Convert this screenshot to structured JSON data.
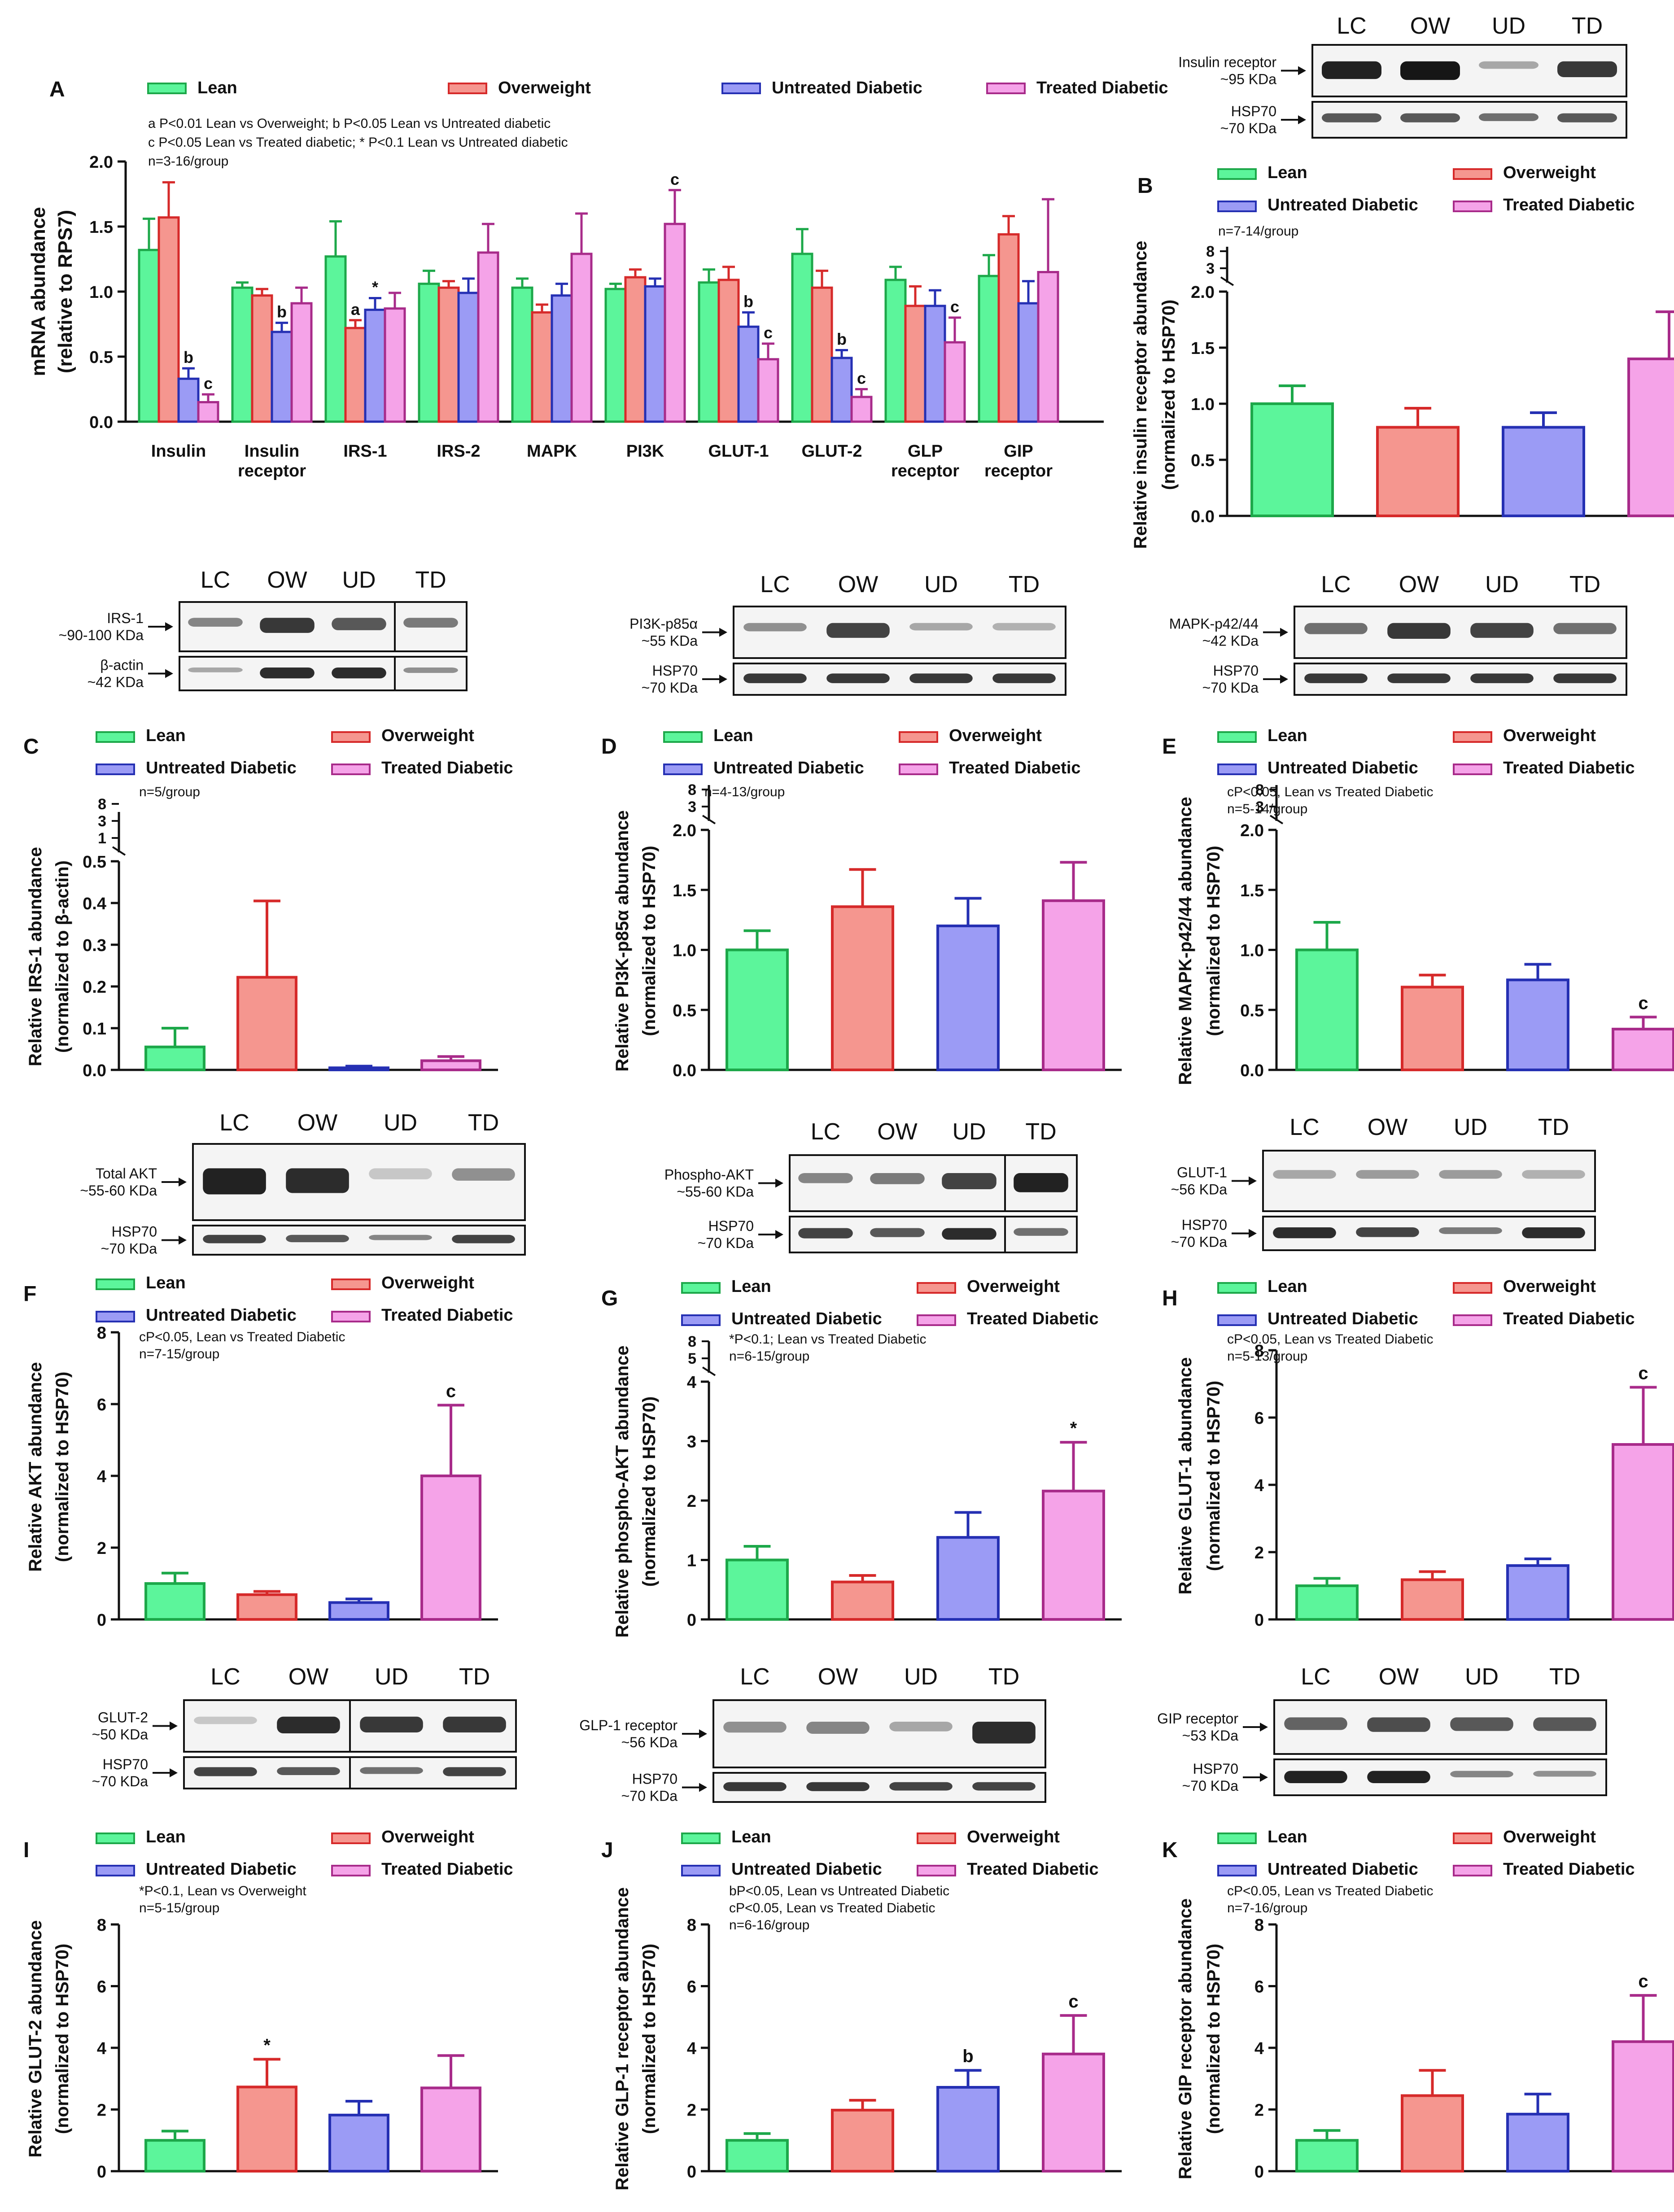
{
  "colors": {
    "lean": "#5CF59B",
    "overweight": "#F5968F",
    "untreated": "#9B9BF5",
    "treated": "#F5A3E8",
    "lean_edge": "#1DA84A",
    "overweight_edge": "#D62A2A",
    "untreated_edge": "#2530B3",
    "treated_edge": "#A82B8A"
  },
  "legend": [
    "Lean",
    "Overweight",
    "Untreated Diabetic",
    "Treated Diabetic"
  ],
  "chart_data": [
    {
      "id": "A",
      "type": "bar",
      "panel_label": "A",
      "ylabel": "mRNA abundance (relative to RPS7)",
      "ylim": [
        0,
        2.0
      ],
      "yticks": [
        0,
        0.5,
        1.0,
        1.5,
        2.0
      ],
      "ytick_labels": [
        "0.0",
        "0.5",
        "1.0",
        "1.5",
        "2.0"
      ],
      "notes": [
        "a P<0.01 Lean vs Overweight;  b P<0.05 Lean vs Untreated diabetic",
        "c P<0.05 Lean vs Treated diabetic;  * P<0.1 Lean vs Untreated diabetic",
        "n=3-16/group"
      ],
      "categories": [
        "Insulin",
        "Insulin\nreceptor",
        "IRS-1",
        "IRS-2",
        "MAPK",
        "PI3K",
        "GLUT-1",
        "GLUT-2",
        "GLP\nreceptor",
        "GIP\nreceptor"
      ],
      "series": [
        {
          "name": "Lean",
          "values": [
            1.32,
            1.03,
            1.27,
            1.06,
            1.03,
            1.02,
            1.07,
            1.29,
            1.09,
            1.12
          ],
          "err": [
            0.24,
            0.04,
            0.27,
            0.1,
            0.07,
            0.04,
            0.1,
            0.19,
            0.1,
            0.16
          ],
          "sig": [
            "",
            "",
            "",
            "",
            "",
            "",
            "",
            "",
            "",
            ""
          ]
        },
        {
          "name": "Overweight",
          "values": [
            1.57,
            0.97,
            0.72,
            1.03,
            0.84,
            1.11,
            1.09,
            1.03,
            0.89,
            1.44
          ],
          "err": [
            0.27,
            0.05,
            0.06,
            0.05,
            0.06,
            0.06,
            0.1,
            0.13,
            0.15,
            0.14
          ],
          "sig": [
            "",
            "",
            "a",
            "",
            "",
            "",
            "",
            "",
            "",
            ""
          ]
        },
        {
          "name": "Untreated Diabetic",
          "values": [
            0.33,
            0.69,
            0.86,
            0.99,
            0.97,
            1.04,
            0.73,
            0.49,
            0.89,
            0.91
          ],
          "err": [
            0.08,
            0.07,
            0.09,
            0.11,
            0.09,
            0.06,
            0.11,
            0.06,
            0.12,
            0.17
          ],
          "sig": [
            "b",
            "b",
            "*",
            "",
            "",
            "",
            "b",
            "b",
            "",
            ""
          ]
        },
        {
          "name": "Treated Diabetic",
          "values": [
            0.15,
            0.91,
            0.87,
            1.3,
            1.29,
            1.52,
            0.48,
            0.19,
            0.61,
            1.15
          ],
          "err": [
            0.06,
            0.12,
            0.12,
            0.22,
            0.31,
            0.26,
            0.12,
            0.06,
            0.19,
            0.56
          ],
          "sig": [
            "c",
            "",
            "",
            "",
            "",
            "c",
            "c",
            "c",
            "c",
            ""
          ]
        }
      ]
    },
    {
      "id": "B",
      "type": "bar",
      "panel_label": "B",
      "ylabel": "Relative insulin receptor abundance (normalized to HSP70)",
      "ylim": [
        0,
        2.0
      ],
      "yticks": [
        0,
        0.5,
        1.0,
        1.5,
        2.0
      ],
      "ytick_labels": [
        "0.0",
        "0.5",
        "1.0",
        "1.5",
        "2.0"
      ],
      "axis_break": [
        "3",
        "8"
      ],
      "notes": [
        "n=7-14/group"
      ],
      "categories": [
        "Lean",
        "Overweight",
        "Untreated Diabetic",
        "Treated Diabetic"
      ],
      "values": [
        1.0,
        0.79,
        0.79,
        1.4
      ],
      "err": [
        0.16,
        0.17,
        0.13,
        0.42
      ],
      "sig": [
        "",
        "",
        "",
        ""
      ]
    },
    {
      "id": "C",
      "type": "bar",
      "panel_label": "C",
      "ylabel": "Relative IRS-1 abundance (normalized to β-actin)",
      "ylim": [
        0,
        0.5
      ],
      "yticks": [
        0,
        0.1,
        0.2,
        0.3,
        0.4,
        0.5
      ],
      "ytick_labels": [
        "0.0",
        "0.1",
        "0.2",
        "0.3",
        "0.4",
        "0.5"
      ],
      "axis_break": [
        "1",
        "3",
        "8"
      ],
      "notes": [
        "n=5/group"
      ],
      "categories": [
        "Lean",
        "Overweight",
        "Untreated Diabetic",
        "Treated Diabetic"
      ],
      "values": [
        0.055,
        0.222,
        0.005,
        0.022
      ],
      "err": [
        0.045,
        0.183,
        0.004,
        0.01
      ],
      "sig": [
        "",
        "",
        "",
        ""
      ]
    },
    {
      "id": "D",
      "type": "bar",
      "panel_label": "D",
      "ylabel": "Relative PI3K-p85α abundance (normalized to HSP70)",
      "ylim": [
        0,
        2.0
      ],
      "yticks": [
        0,
        0.5,
        1.0,
        1.5,
        2.0
      ],
      "ytick_labels": [
        "0.0",
        "0.5",
        "1.0",
        "1.5",
        "2.0"
      ],
      "axis_break": [
        "3",
        "8"
      ],
      "notes": [
        "n=4-13/group"
      ],
      "categories": [
        "Lean",
        "Overweight",
        "Untreated Diabetic",
        "Treated Diabetic"
      ],
      "values": [
        1.0,
        1.36,
        1.2,
        1.41
      ],
      "err": [
        0.16,
        0.31,
        0.23,
        0.32
      ],
      "sig": [
        "",
        "",
        "",
        ""
      ]
    },
    {
      "id": "E",
      "type": "bar",
      "panel_label": "E",
      "ylabel": "Relative MAPK-p42/44 abundance (normalized to HSP70)",
      "ylim": [
        0,
        2.0
      ],
      "yticks": [
        0,
        0.5,
        1.0,
        1.5,
        2.0
      ],
      "ytick_labels": [
        "0.0",
        "0.5",
        "1.0",
        "1.5",
        "2.0"
      ],
      "axis_break": [
        "3",
        "8"
      ],
      "notes": [
        "cP<0.05, Lean vs Treated Diabetic",
        "n=5-14/group"
      ],
      "categories": [
        "Lean",
        "Overweight",
        "Untreated Diabetic",
        "Treated Diabetic"
      ],
      "values": [
        1.0,
        0.69,
        0.75,
        0.34
      ],
      "err": [
        0.23,
        0.1,
        0.13,
        0.1
      ],
      "sig": [
        "",
        "",
        "",
        "c"
      ]
    },
    {
      "id": "F",
      "type": "bar",
      "panel_label": "F",
      "ylabel": "Relative AKT abundance (normalized to HSP70)",
      "ylim": [
        0,
        8
      ],
      "yticks": [
        0,
        2,
        4,
        6,
        8
      ],
      "ytick_labels": [
        "0",
        "2",
        "4",
        "6",
        "8"
      ],
      "notes": [
        "cP<0.05, Lean vs Treated Diabetic",
        "n=7-15/group"
      ],
      "categories": [
        "Lean",
        "Overweight",
        "Untreated Diabetic",
        "Treated Diabetic"
      ],
      "values": [
        1.0,
        0.69,
        0.47,
        4.0
      ],
      "err": [
        0.29,
        0.09,
        0.1,
        1.97
      ],
      "sig": [
        "",
        "",
        "",
        "c"
      ]
    },
    {
      "id": "G",
      "type": "bar",
      "panel_label": "G",
      "ylabel": "Relative phospho-AKT abundance (normalized to HSP70)",
      "ylim": [
        0,
        4
      ],
      "yticks": [
        0,
        1,
        2,
        3,
        4
      ],
      "ytick_labels": [
        "0",
        "1",
        "2",
        "3",
        "4"
      ],
      "axis_break": [
        "5",
        "8"
      ],
      "notes": [
        "*P<0.1; Lean vs Treated Diabetic",
        "n=6-15/group"
      ],
      "categories": [
        "Lean",
        "Overweight",
        "Untreated Diabetic",
        "Treated Diabetic"
      ],
      "values": [
        1.0,
        0.63,
        1.38,
        2.16
      ],
      "err": [
        0.23,
        0.11,
        0.42,
        0.82
      ],
      "sig": [
        "",
        "",
        "",
        "*"
      ]
    },
    {
      "id": "H",
      "type": "bar",
      "panel_label": "H",
      "ylabel": "Relative GLUT-1 abundance (normalized to HSP70)",
      "ylim": [
        0,
        8
      ],
      "yticks": [
        0,
        2,
        4,
        6,
        8
      ],
      "ytick_labels": [
        "0",
        "2",
        "4",
        "6",
        "8"
      ],
      "notes": [
        "cP<0.05, Lean vs Treated Diabetic",
        "n=5-13/group"
      ],
      "categories": [
        "Lean",
        "Overweight",
        "Untreated Diabetic",
        "Treated Diabetic"
      ],
      "values": [
        1.0,
        1.18,
        1.6,
        5.2
      ],
      "err": [
        0.22,
        0.24,
        0.2,
        1.7
      ],
      "sig": [
        "",
        "",
        "",
        "c"
      ]
    },
    {
      "id": "I",
      "type": "bar",
      "panel_label": "I",
      "ylabel": "Relative GLUT-2 abundance (normalized to HSP70)",
      "ylim": [
        0,
        8
      ],
      "yticks": [
        0,
        2,
        4,
        6,
        8
      ],
      "ytick_labels": [
        "0",
        "2",
        "4",
        "6",
        "8"
      ],
      "notes": [
        "*P<0.1, Lean vs Overweight",
        "n=5-15/group"
      ],
      "categories": [
        "Lean",
        "Overweight",
        "Untreated Diabetic",
        "Treated Diabetic"
      ],
      "values": [
        1.0,
        2.73,
        1.82,
        2.7
      ],
      "err": [
        0.3,
        0.9,
        0.45,
        1.05
      ],
      "sig": [
        "",
        "*",
        "",
        ""
      ]
    },
    {
      "id": "J",
      "type": "bar",
      "panel_label": "J",
      "ylabel": "Relative GLP-1 receptor abundance (normalized to HSP70)",
      "ylim": [
        0,
        8
      ],
      "yticks": [
        0,
        2,
        4,
        6,
        8
      ],
      "ytick_labels": [
        "0",
        "2",
        "4",
        "6",
        "8"
      ],
      "notes": [
        "bP<0.05, Lean vs Untreated Diabetic",
        "cP<0.05, Lean vs Treated Diabetic",
        "n=6-16/group"
      ],
      "categories": [
        "Lean",
        "Overweight",
        "Untreated Diabetic",
        "Treated Diabetic"
      ],
      "values": [
        1.0,
        1.98,
        2.72,
        3.8
      ],
      "err": [
        0.22,
        0.32,
        0.55,
        1.25
      ],
      "sig": [
        "",
        "",
        "b",
        "c"
      ]
    },
    {
      "id": "K",
      "type": "bar",
      "panel_label": "K",
      "ylabel": "Relative GIP receptor abundance (normalized to HSP70)",
      "ylim": [
        0,
        8
      ],
      "yticks": [
        0,
        2,
        4,
        6,
        8
      ],
      "ytick_labels": [
        "0",
        "2",
        "4",
        "6",
        "8"
      ],
      "notes": [
        "cP<0.05, Lean vs Treated Diabetic",
        "n=7-16/group"
      ],
      "categories": [
        "Lean",
        "Overweight",
        "Untreated Diabetic",
        "Treated Diabetic"
      ],
      "values": [
        1.0,
        2.45,
        1.85,
        4.2
      ],
      "err": [
        0.32,
        0.82,
        0.65,
        1.5
      ],
      "sig": [
        "",
        "",
        "",
        "c"
      ]
    }
  ],
  "blots": [
    {
      "id": "blot-B",
      "lanes": [
        "LC",
        "OW",
        "UD",
        "TD"
      ],
      "rows": [
        {
          "label": "Insulin receptor",
          "size": "~95 KDa"
        },
        {
          "label": "HSP70",
          "size": "~70 KDa"
        }
      ]
    },
    {
      "id": "blot-C",
      "lanes": [
        "LC",
        "OW",
        "UD",
        "TD"
      ],
      "rows": [
        {
          "label": "IRS-1",
          "size": "~90-100 KDa"
        },
        {
          "label": "β-actin",
          "size": "~42 KDa"
        }
      ]
    },
    {
      "id": "blot-D",
      "lanes": [
        "LC",
        "OW",
        "UD",
        "TD"
      ],
      "rows": [
        {
          "label": "PI3K-p85α",
          "size": "~55 KDa"
        },
        {
          "label": "HSP70",
          "size": "~70 KDa"
        }
      ]
    },
    {
      "id": "blot-E",
      "lanes": [
        "LC",
        "OW",
        "UD",
        "TD"
      ],
      "rows": [
        {
          "label": "MAPK-p42/44",
          "size": "~42 KDa"
        },
        {
          "label": "HSP70",
          "size": "~70 KDa"
        }
      ]
    },
    {
      "id": "blot-F",
      "lanes": [
        "LC",
        "OW",
        "UD",
        "TD"
      ],
      "rows": [
        {
          "label": "Total AKT",
          "size": "~55-60 KDa"
        },
        {
          "label": "HSP70",
          "size": "~70 KDa"
        }
      ]
    },
    {
      "id": "blot-G",
      "lanes": [
        "LC",
        "OW",
        "UD",
        "TD"
      ],
      "rows": [
        {
          "label": "Phospho-AKT",
          "size": "~55-60 KDa"
        },
        {
          "label": "HSP70",
          "size": "~70 KDa"
        }
      ]
    },
    {
      "id": "blot-H",
      "lanes": [
        "LC",
        "OW",
        "UD",
        "TD"
      ],
      "rows": [
        {
          "label": "GLUT-1",
          "size": "~56 KDa"
        },
        {
          "label": "HSP70",
          "size": "~70 KDa"
        }
      ]
    },
    {
      "id": "blot-I",
      "lanes": [
        "LC",
        "OW",
        "UD",
        "TD"
      ],
      "rows": [
        {
          "label": "GLUT-2",
          "size": "~50 KDa"
        },
        {
          "label": "HSP70",
          "size": "~70 KDa"
        }
      ]
    },
    {
      "id": "blot-J",
      "lanes": [
        "LC",
        "OW",
        "UD",
        "TD"
      ],
      "rows": [
        {
          "label": "GLP-1 receptor",
          "size": "~56 KDa"
        },
        {
          "label": "HSP70",
          "size": "~70 KDa"
        }
      ]
    },
    {
      "id": "blot-K",
      "lanes": [
        "LC",
        "OW",
        "UD",
        "TD"
      ],
      "rows": [
        {
          "label": "GIP receptor",
          "size": "~53 KDa"
        },
        {
          "label": "HSP70",
          "size": "~70 KDa"
        }
      ]
    }
  ]
}
